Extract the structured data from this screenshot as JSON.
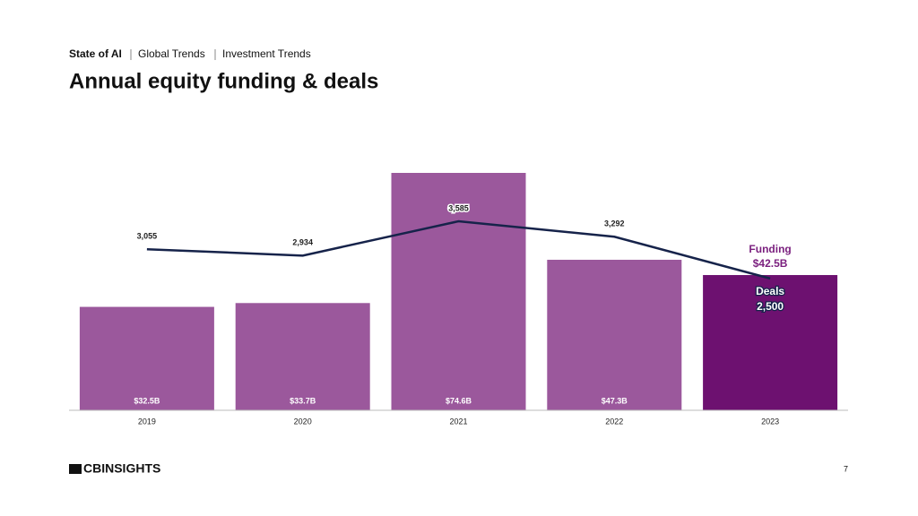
{
  "header": {
    "breadcrumb": [
      "State of AI",
      "Global Trends",
      "Investment Trends"
    ],
    "title": "Annual equity funding & deals"
  },
  "chart_data": {
    "type": "bar",
    "categories": [
      "2019",
      "2020",
      "2021",
      "2022",
      "2023"
    ],
    "series": [
      {
        "name": "Funding",
        "type": "bar",
        "colors": [
          "#9b589c",
          "#9b589c",
          "#9b589c",
          "#9b589c",
          "#6d1170"
        ],
        "label_color": "#7a1f7e",
        "values": [
          32.5,
          33.7,
          74.6,
          47.3,
          42.5
        ],
        "value_labels": [
          "$32.5B",
          "$33.7B",
          "$74.6B",
          "$47.3B",
          "$42.5B"
        ]
      },
      {
        "name": "Deals",
        "type": "line",
        "color": "#16234a",
        "values": [
          3055,
          2934,
          3585,
          3292,
          2500
        ],
        "value_labels": [
          "3,055",
          "2,934",
          "3,585",
          "3,292",
          "2,500"
        ]
      }
    ]
  },
  "footer": {
    "logo": "CBINSIGHTS",
    "page": "7"
  }
}
